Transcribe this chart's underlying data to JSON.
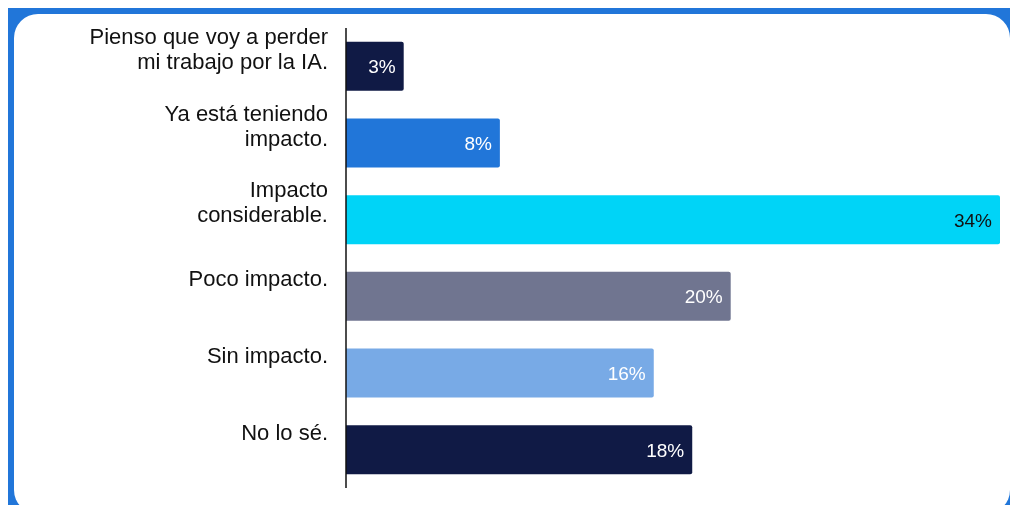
{
  "chart_data": {
    "type": "bar",
    "orientation": "horizontal",
    "categories": [
      "Pienso que voy a perder\nmi trabajo por la IA.",
      "Ya está teniendo\nimpacto.",
      "Impacto\nconsiderable.",
      "Poco impacto.",
      "Sin impacto.",
      "No lo sé."
    ],
    "values": [
      3,
      8,
      34,
      20,
      16,
      18
    ],
    "colors": [
      "#101a45",
      "#2176d9",
      "#00d4f7",
      "#707590",
      "#78aae6",
      "#101a45"
    ],
    "value_labels": [
      "3%",
      "8%",
      "34%",
      "20%",
      "16%",
      "18%"
    ],
    "grid": false
  }
}
